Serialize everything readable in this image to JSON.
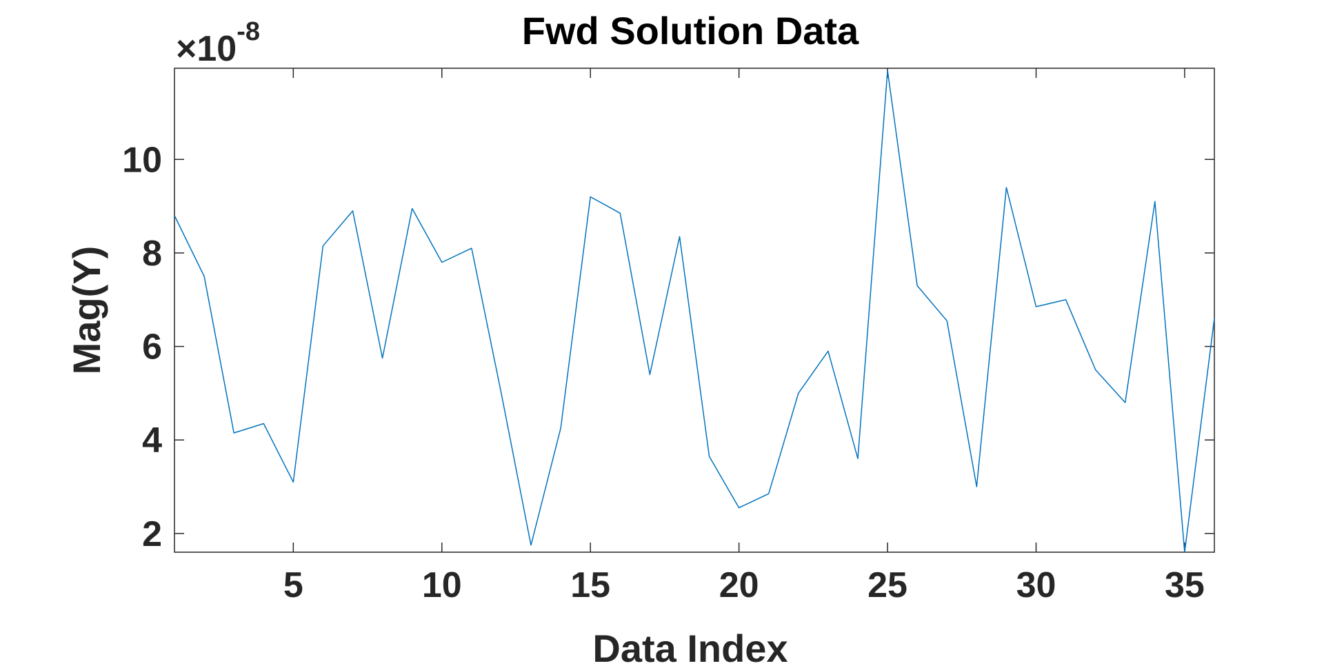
{
  "chart_data": {
    "type": "line",
    "title": "Fwd Solution Data",
    "xlabel": "Data Index",
    "ylabel": "Mag(Y)",
    "y_scale_note": {
      "prefix": "×10",
      "exponent": "-8"
    },
    "xlim": [
      1,
      36
    ],
    "ylim": [
      1.6,
      11.95
    ],
    "x_ticks": [
      5,
      10,
      15,
      20,
      25,
      30,
      35
    ],
    "y_ticks": [
      2,
      4,
      6,
      8,
      10
    ],
    "grid": false,
    "series": [
      {
        "color": "#0072BD",
        "x": [
          1,
          2,
          3,
          4,
          5,
          6,
          7,
          8,
          9,
          10,
          11,
          12,
          13,
          14,
          15,
          16,
          17,
          18,
          19,
          20,
          21,
          22,
          23,
          24,
          25,
          26,
          27,
          28,
          29,
          30,
          31,
          32,
          33,
          34,
          35,
          36
        ],
        "y": [
          8.8,
          7.5,
          4.15,
          4.35,
          3.1,
          8.15,
          8.9,
          5.75,
          8.95,
          7.8,
          8.1,
          5.0,
          1.75,
          4.25,
          9.2,
          8.85,
          5.4,
          8.35,
          3.65,
          2.55,
          2.85,
          5.0,
          5.9,
          3.6,
          11.9,
          7.3,
          6.55,
          3.0,
          9.4,
          6.85,
          7.0,
          5.5,
          4.8,
          9.1,
          1.6,
          6.6
        ]
      }
    ]
  }
}
